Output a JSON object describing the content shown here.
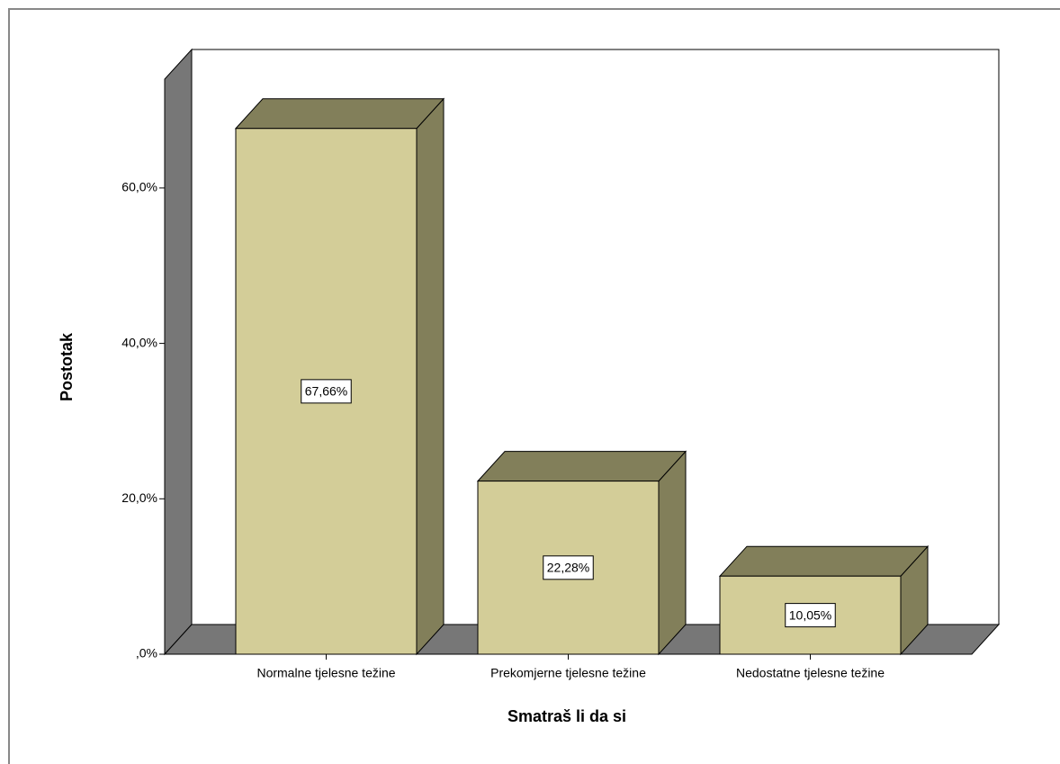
{
  "chart_data": {
    "type": "bar3d",
    "x_label": "Smatraš li da si",
    "y_label": "Postotak",
    "categories": [
      "Normalne tjelesne težine",
      "Prekomjerne tjelesne težine",
      "Nedostatne tjelesne težine"
    ],
    "values": [
      67.66,
      22.28,
      10.05
    ],
    "value_labels": [
      "67,66%",
      "22,28%",
      "10,05%"
    ],
    "color": "#d3cd98",
    "ylim": [
      0,
      74
    ],
    "yticks": [
      {
        "value": 0,
        "label": ",0%"
      },
      {
        "value": 20,
        "label": "20,0%"
      },
      {
        "value": 40,
        "label": "40,0%"
      },
      {
        "value": 60,
        "label": "60,0%"
      }
    ]
  }
}
